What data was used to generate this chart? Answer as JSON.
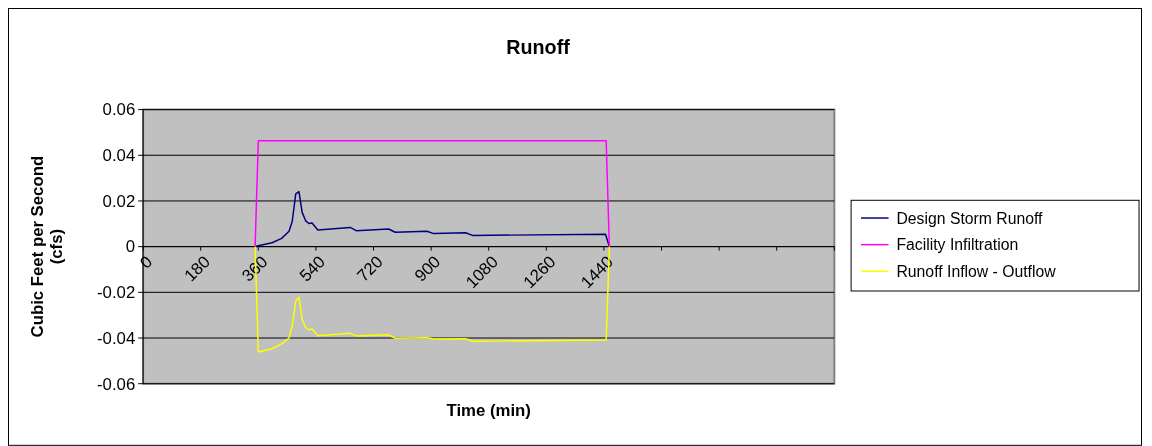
{
  "chart_data": {
    "type": "line",
    "title": "Runoff",
    "xlabel": "Time (min)",
    "ylabel": "Cubic Feet per Second (cfs)",
    "xlim": [
      0,
      2160
    ],
    "xticks": [
      0,
      180,
      360,
      540,
      720,
      900,
      1080,
      1260,
      1440,
      {
        "value": 1620,
        "label": null
      },
      {
        "value": 1800,
        "label": null
      },
      {
        "value": 1980,
        "label": null
      },
      {
        "value": 2160,
        "label": null
      }
    ],
    "ylim": [
      -0.06,
      0.06
    ],
    "yticks": [
      -0.06,
      -0.04,
      -0.02,
      0,
      0.02,
      0.04,
      0.06
    ],
    "grid": "y",
    "legend": "right",
    "marker": "none",
    "line_style": "solid",
    "series": [
      {
        "name": "Design Storm Runoff",
        "color": "#000080",
        "x": [
          350,
          356,
          403,
          433,
          456,
          466,
          477,
          487,
          497,
          508,
          518,
          528,
          546,
          647,
          666,
          767,
          788,
          887,
          908,
          1008,
          1029,
          1445,
          1457
        ],
        "values": [
          0,
          0.0003,
          0.0017,
          0.0036,
          0.0067,
          0.011,
          0.0231,
          0.0241,
          0.015,
          0.0113,
          0.0101,
          0.0103,
          0.0073,
          0.0084,
          0.007,
          0.0077,
          0.0063,
          0.0067,
          0.0057,
          0.0061,
          0.0049,
          0.0054,
          0
        ]
      },
      {
        "name": "Facility Infiltration",
        "color": "#ff00ff",
        "x": [
          350,
          360,
          1447,
          1457
        ],
        "values": [
          0,
          0.0463,
          0.0463,
          0
        ]
      },
      {
        "name": "Runoff Inflow - Outflow",
        "color": "#ffff00",
        "x": [
          350,
          360,
          403,
          433,
          456,
          466,
          477,
          487,
          497,
          508,
          518,
          528,
          546,
          647,
          666,
          767,
          788,
          887,
          908,
          1008,
          1029,
          1447,
          1457
        ],
        "values": [
          0,
          -0.0461,
          -0.0447,
          -0.0426,
          -0.04,
          -0.0347,
          -0.024,
          -0.0221,
          -0.0319,
          -0.0354,
          -0.0364,
          -0.0361,
          -0.039,
          -0.0379,
          -0.0391,
          -0.0386,
          -0.0401,
          -0.0399,
          -0.0404,
          -0.0403,
          -0.0414,
          -0.0409,
          0
        ]
      }
    ]
  }
}
